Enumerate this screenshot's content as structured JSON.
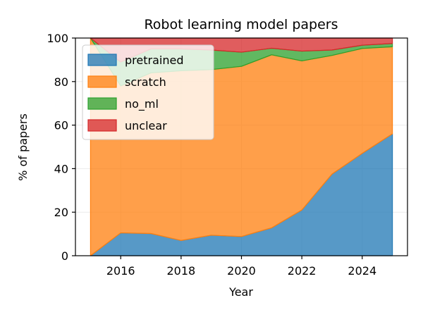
{
  "chart_data": {
    "type": "area",
    "stacked": true,
    "title": "Robot learning model papers",
    "xlabel": "Year",
    "ylabel": "% of papers",
    "xlim": [
      2014.5,
      2025.5
    ],
    "ylim": [
      0,
      100
    ],
    "xticks": [
      2016,
      2018,
      2020,
      2022,
      2024
    ],
    "yticks": [
      0,
      20,
      40,
      60,
      80,
      100
    ],
    "grid": true,
    "legend_position": "upper-left",
    "x": [
      2015,
      2016,
      2017,
      2018,
      2019,
      2020,
      2021,
      2022,
      2023,
      2024,
      2025
    ],
    "series": [
      {
        "name": "pretrained",
        "color": "#1f77b4",
        "values": [
          0,
          10.5,
          10.2,
          7.0,
          9.4,
          8.8,
          12.8,
          21.0,
          37.5,
          47.0,
          56.0
        ]
      },
      {
        "name": "scratch",
        "color": "#ff7f0e",
        "values": [
          100,
          67.5,
          73.8,
          78.0,
          76.1,
          78.2,
          79.5,
          68.5,
          54.5,
          48.2,
          40.0
        ]
      },
      {
        "name": "no_ml",
        "color": "#2ca02c",
        "values": [
          0,
          11.0,
          11.0,
          10.0,
          9.0,
          6.5,
          3.0,
          4.5,
          2.5,
          1.5,
          1.5
        ]
      },
      {
        "name": "unclear",
        "color": "#d62728",
        "values": [
          0,
          11.0,
          5.0,
          5.0,
          5.5,
          6.5,
          4.7,
          6.0,
          5.5,
          3.3,
          2.5
        ]
      }
    ]
  }
}
